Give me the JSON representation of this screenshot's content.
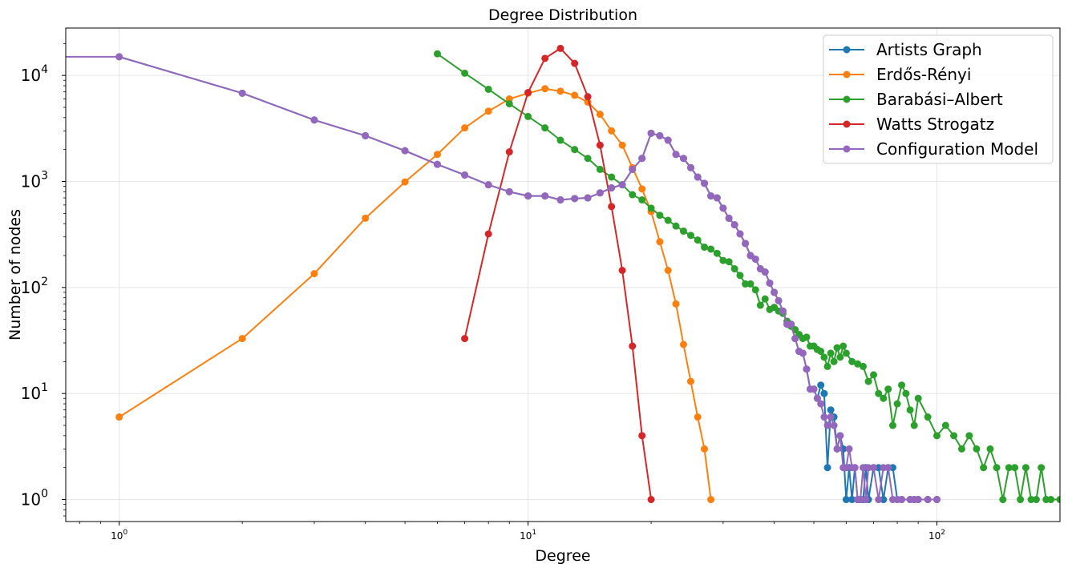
{
  "chart_data": {
    "type": "line",
    "title": "Degree Distribution",
    "xlabel": "Degree",
    "ylabel": "Number of nodes",
    "xscale": "log",
    "yscale": "log",
    "xlim": [
      0.74,
      200
    ],
    "ylim": [
      0.62,
      28000
    ],
    "grid": true,
    "legend_position": "top-right",
    "x_ticks": [
      {
        "value": 1,
        "base": "10",
        "exp": "0"
      },
      {
        "value": 10,
        "base": "10",
        "exp": "1"
      },
      {
        "value": 100,
        "base": "10",
        "exp": "2"
      }
    ],
    "y_ticks": [
      {
        "value": 1,
        "base": "10",
        "exp": "0"
      },
      {
        "value": 10,
        "base": "10",
        "exp": "1"
      },
      {
        "value": 100,
        "base": "10",
        "exp": "2"
      },
      {
        "value": 1000,
        "base": "10",
        "exp": "3"
      },
      {
        "value": 10000,
        "base": "10",
        "exp": "4"
      }
    ],
    "series": [
      {
        "name": "Artists Graph",
        "color": "#1f77b4",
        "x": [
          1,
          2,
          3,
          4,
          5,
          6,
          7,
          8,
          9,
          10,
          11,
          12,
          13,
          14,
          15,
          16,
          17,
          18,
          19,
          20,
          21,
          22,
          23,
          24,
          25,
          26,
          27,
          28,
          29,
          30,
          31,
          32,
          33,
          34,
          35,
          36,
          37,
          38,
          39,
          40,
          41,
          42,
          43,
          44,
          45,
          46,
          47,
          48,
          49,
          50,
          51,
          52,
          53,
          54,
          55,
          56,
          57,
          58,
          59,
          60,
          61,
          62,
          63,
          64,
          65,
          66,
          67,
          68,
          70,
          72,
          74,
          76,
          78,
          80,
          82,
          86,
          88,
          90,
          95,
          100
        ],
        "y": [
          15000,
          6800,
          3800,
          2700,
          1950,
          1450,
          1150,
          930,
          800,
          730,
          730,
          670,
          690,
          700,
          780,
          870,
          930,
          1300,
          1650,
          2850,
          2700,
          2450,
          1800,
          1650,
          1350,
          1100,
          960,
          730,
          700,
          560,
          450,
          390,
          320,
          260,
          200,
          185,
          150,
          140,
          110,
          90,
          75,
          60,
          45,
          45,
          33,
          25,
          24,
          17,
          11,
          11,
          9,
          12,
          10,
          2,
          7,
          6,
          3,
          4,
          3,
          1,
          2,
          1,
          2,
          1,
          1,
          1,
          2,
          1,
          2,
          2,
          1,
          2,
          2,
          1,
          1,
          1,
          1,
          1,
          1,
          1
        ]
      },
      {
        "name": "Erdős-Rényi",
        "color": "#ff7f0e",
        "x": [
          1,
          2,
          3,
          4,
          5,
          6,
          7,
          8,
          9,
          10,
          11,
          12,
          13,
          14,
          15,
          16,
          17,
          18,
          19,
          20,
          21,
          22,
          23,
          24,
          25,
          26,
          27,
          28
        ],
        "y": [
          6,
          33,
          135,
          450,
          990,
          1800,
          3200,
          4600,
          6000,
          6800,
          7500,
          7100,
          6500,
          5600,
          4300,
          3000,
          2200,
          1350,
          850,
          520,
          270,
          145,
          70,
          29,
          13,
          6,
          3,
          1
        ]
      },
      {
        "name": "Barabási–Albert",
        "color": "#2ca02c",
        "x": [
          6,
          7,
          8,
          9,
          10,
          11,
          12,
          13,
          14,
          15,
          16,
          17,
          18,
          19,
          20,
          21,
          22,
          23,
          24,
          25,
          26,
          27,
          28,
          29,
          30,
          31,
          32,
          33,
          34,
          35,
          36,
          37,
          38,
          39,
          40,
          41,
          42,
          43,
          44,
          45,
          46,
          47,
          48,
          49,
          50,
          51,
          52,
          53,
          54,
          55,
          56,
          57,
          58,
          59,
          60,
          62,
          64,
          66,
          68,
          70,
          72,
          74,
          76,
          78,
          80,
          82,
          84,
          86,
          88,
          90,
          95,
          100,
          105,
          110,
          115,
          120,
          125,
          130,
          135,
          140,
          145,
          150,
          155,
          160,
          165,
          170,
          175,
          180,
          185,
          190,
          200
        ],
        "y": [
          16000,
          10500,
          7400,
          5400,
          4100,
          3200,
          2450,
          2000,
          1650,
          1300,
          1100,
          930,
          750,
          670,
          560,
          480,
          430,
          380,
          340,
          310,
          280,
          240,
          230,
          210,
          180,
          175,
          150,
          130,
          108,
          108,
          95,
          68,
          78,
          62,
          65,
          60,
          57,
          48,
          43,
          40,
          36,
          33,
          34,
          28,
          28,
          26,
          25,
          22,
          18,
          24,
          20,
          27,
          22,
          28,
          24,
          20,
          19,
          18,
          13,
          15,
          10,
          9,
          11,
          5,
          8,
          12,
          10,
          7,
          5,
          9,
          6,
          4,
          5,
          4,
          3,
          4,
          3,
          2,
          3,
          2,
          1,
          2,
          2,
          1,
          2,
          1,
          1,
          2,
          1,
          1,
          1
        ]
      },
      {
        "name": "Watts Strogatz",
        "color": "#d62728",
        "x": [
          7,
          8,
          9,
          10,
          11,
          12,
          13,
          14,
          15,
          16,
          17,
          18,
          19,
          20
        ],
        "y": [
          33,
          320,
          1900,
          6900,
          14500,
          18000,
          13000,
          6300,
          2200,
          580,
          145,
          28,
          4,
          1
        ]
      },
      {
        "name": "Configuration Model",
        "color": "#9467bd",
        "x": [
          0.5,
          1,
          2,
          3,
          4,
          5,
          6,
          7,
          8,
          9,
          10,
          11,
          12,
          13,
          14,
          15,
          16,
          17,
          18,
          19,
          20,
          21,
          22,
          23,
          24,
          25,
          26,
          27,
          28,
          29,
          30,
          31,
          32,
          33,
          34,
          35,
          36,
          37,
          38,
          39,
          40,
          41,
          42,
          43,
          44,
          45,
          46,
          47,
          48,
          49,
          50,
          51,
          52,
          53,
          54,
          55,
          56,
          57,
          58,
          59,
          60,
          61,
          62,
          63,
          64,
          65,
          66,
          67,
          68,
          70,
          72,
          74,
          76,
          78,
          80,
          82,
          86,
          88,
          90,
          95,
          100
        ],
        "y": [
          15000,
          15000,
          6800,
          3800,
          2700,
          1950,
          1450,
          1150,
          930,
          800,
          730,
          730,
          670,
          690,
          700,
          780,
          870,
          930,
          1300,
          1650,
          2850,
          2700,
          2450,
          1800,
          1650,
          1350,
          1100,
          960,
          730,
          700,
          560,
          450,
          390,
          320,
          260,
          200,
          185,
          150,
          140,
          110,
          90,
          75,
          60,
          45,
          45,
          33,
          25,
          24,
          17,
          11,
          11,
          9,
          8,
          6,
          5,
          6,
          5,
          3,
          4,
          2,
          2,
          3,
          2,
          2,
          1,
          1,
          2,
          1,
          2,
          2,
          1,
          2,
          2,
          1,
          1,
          1,
          1,
          1,
          1,
          1,
          1
        ]
      }
    ]
  }
}
